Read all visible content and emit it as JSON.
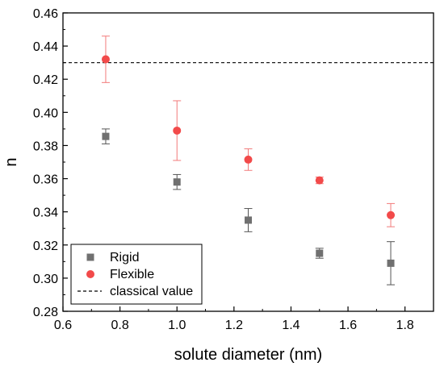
{
  "chart_data": {
    "type": "scatter",
    "xlabel": "solute diameter (nm)",
    "ylabel": "n",
    "xlim": [
      0.6,
      1.9
    ],
    "ylim": [
      0.28,
      0.46
    ],
    "x_ticks": [
      "0.6",
      "0.8",
      "1.0",
      "1.2",
      "1.4",
      "1.6",
      "1.8"
    ],
    "y_ticks": [
      "0.28",
      "0.30",
      "0.32",
      "0.34",
      "0.36",
      "0.38",
      "0.40",
      "0.42",
      "0.44",
      "0.46"
    ],
    "grid": false,
    "legend_position": "bottom-left",
    "series": [
      {
        "name": "Rigid",
        "marker": "square",
        "color": "#707070",
        "x": [
          0.75,
          1.0,
          1.25,
          1.5,
          1.75
        ],
        "y": [
          0.3855,
          0.358,
          0.335,
          0.315,
          0.309
        ],
        "err": [
          0.0045,
          0.0045,
          0.007,
          0.003,
          0.013
        ]
      },
      {
        "name": "Flexible",
        "marker": "circle",
        "color": "#f24a4a",
        "x": [
          0.75,
          1.0,
          1.25,
          1.5,
          1.75
        ],
        "y": [
          0.432,
          0.389,
          0.3715,
          0.359,
          0.338
        ],
        "err": [
          0.014,
          0.018,
          0.0065,
          0.002,
          0.007
        ]
      }
    ],
    "reference_line": {
      "name": "classical value",
      "y": 0.43,
      "style": "dashed",
      "color": "#000000"
    }
  }
}
